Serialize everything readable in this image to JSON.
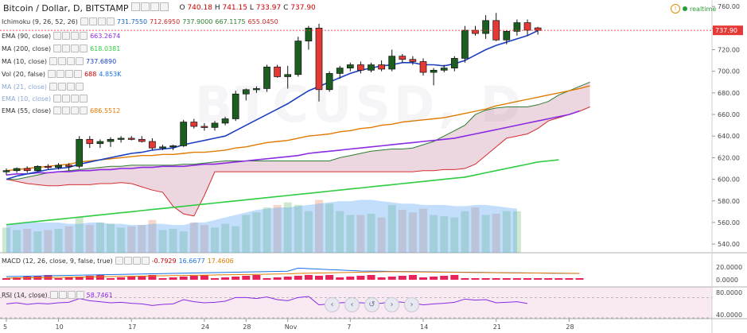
{
  "title": {
    "text": "Bitcoin / Dollar, D, BITSTAMP"
  },
  "ohlc": {
    "o_label": "O",
    "o": "740.18",
    "h_label": "H",
    "h": "741.15",
    "l_label": "L",
    "l": "733.97",
    "c_label": "C",
    "c": "737.90"
  },
  "realtime": {
    "label": "realtime",
    "icon": "alert-circle-icon"
  },
  "watermark": "BTCUSD, D",
  "indicators": [
    {
      "label": "Ichimoku (9, 26, 52, 26)",
      "values": [
        "731.7550",
        "712.6950",
        "737.9000",
        "667.1175",
        "655.0450"
      ],
      "colors": [
        "#1565c0",
        "#c62828",
        "#2e7d32",
        "#2e7d32",
        "#c62828"
      ]
    },
    {
      "label": "EMA (90, close)",
      "values": [
        "663.2674"
      ],
      "colors": [
        "#8a2be2"
      ]
    },
    {
      "label": "MA (200, close)",
      "values": [
        "618.0381"
      ],
      "colors": [
        "#2ecc40"
      ]
    },
    {
      "label": "MA (10, close)",
      "values": [
        "737.6890"
      ],
      "colors": [
        "#1a3fbf"
      ]
    },
    {
      "label": "Vol (20, false)",
      "values": [
        "688",
        "4.853K"
      ],
      "colors": [
        "#c00",
        "#1a73e8"
      ]
    },
    {
      "label": "MA (21, close)",
      "values": [],
      "colors": []
    },
    {
      "label": "EMA (10, close)",
      "values": [],
      "colors": []
    },
    {
      "label": "EMA (55, close)",
      "values": [
        "686.5512"
      ],
      "colors": [
        "#e07b00"
      ]
    }
  ],
  "macd": {
    "label": "MACD (12, 26, close, 9, false, true)",
    "values": [
      "-0.7929",
      "16.6677",
      "17.4606"
    ],
    "colors": [
      "#c00",
      "#1a73e8",
      "#e07b00"
    ]
  },
  "rsi": {
    "label": "RSI (14, close)",
    "values": [
      "58.7461"
    ],
    "colors": [
      "#8a2be2"
    ]
  },
  "price_axis": {
    "ticks": [
      "760.00",
      "740.00",
      "720.00",
      "700.00",
      "680.00",
      "660.00",
      "640.00",
      "620.00",
      "600.00",
      "580.00",
      "560.00",
      "540.00"
    ],
    "last": "737.90",
    "last_color": "#e53935"
  },
  "macd_axis": {
    "ticks": [
      "20.0000",
      "0.0000"
    ]
  },
  "rsi_axis": {
    "ticks": [
      "80.0000",
      "40.0000"
    ]
  },
  "navigation": [
    "‹",
    "‹",
    "↺",
    "›",
    "›"
  ],
  "chart_data": {
    "type": "candlestick",
    "title": "Bitcoin / Dollar, D, BITSTAMP",
    "x_labels": [
      {
        "i": 0,
        "t": "5"
      },
      {
        "i": 5,
        "t": "10"
      },
      {
        "i": 12,
        "t": "17"
      },
      {
        "i": 19,
        "t": "24"
      },
      {
        "i": 23,
        "t": "28"
      },
      {
        "i": 27,
        "t": "Nov"
      },
      {
        "i": 33,
        "t": "7"
      },
      {
        "i": 40,
        "t": "14"
      },
      {
        "i": 47,
        "t": "21"
      },
      {
        "i": 54,
        "t": "28"
      }
    ],
    "ylim": [
      532,
      766
    ],
    "candles": [
      {
        "o": 607,
        "h": 610,
        "l": 604,
        "c": 608
      },
      {
        "o": 608,
        "h": 611,
        "l": 606,
        "c": 610
      },
      {
        "o": 610,
        "h": 612,
        "l": 606,
        "c": 608
      },
      {
        "o": 608,
        "h": 613,
        "l": 607,
        "c": 612
      },
      {
        "o": 612,
        "h": 614,
        "l": 609,
        "c": 611
      },
      {
        "o": 611,
        "h": 615,
        "l": 609,
        "c": 613
      },
      {
        "o": 613,
        "h": 615,
        "l": 608,
        "c": 612
      },
      {
        "o": 612,
        "h": 640,
        "l": 610,
        "c": 637
      },
      {
        "o": 637,
        "h": 640,
        "l": 629,
        "c": 633
      },
      {
        "o": 633,
        "h": 637,
        "l": 629,
        "c": 635
      },
      {
        "o": 635,
        "h": 639,
        "l": 630,
        "c": 637
      },
      {
        "o": 637,
        "h": 640,
        "l": 634,
        "c": 638
      },
      {
        "o": 638,
        "h": 640,
        "l": 636,
        "c": 637
      },
      {
        "o": 637,
        "h": 640,
        "l": 634,
        "c": 635
      },
      {
        "o": 635,
        "h": 638,
        "l": 627,
        "c": 629
      },
      {
        "o": 629,
        "h": 632,
        "l": 627,
        "c": 630
      },
      {
        "o": 630,
        "h": 632,
        "l": 627,
        "c": 631
      },
      {
        "o": 631,
        "h": 655,
        "l": 630,
        "c": 653
      },
      {
        "o": 653,
        "h": 656,
        "l": 647,
        "c": 649
      },
      {
        "o": 649,
        "h": 652,
        "l": 645,
        "c": 648
      },
      {
        "o": 648,
        "h": 654,
        "l": 645,
        "c": 652
      },
      {
        "o": 652,
        "h": 658,
        "l": 650,
        "c": 656
      },
      {
        "o": 656,
        "h": 682,
        "l": 654,
        "c": 679
      },
      {
        "o": 679,
        "h": 684,
        "l": 673,
        "c": 683
      },
      {
        "o": 683,
        "h": 686,
        "l": 680,
        "c": 684
      },
      {
        "o": 684,
        "h": 706,
        "l": 681,
        "c": 704
      },
      {
        "o": 704,
        "h": 706,
        "l": 694,
        "c": 695
      },
      {
        "o": 695,
        "h": 705,
        "l": 684,
        "c": 697
      },
      {
        "o": 697,
        "h": 732,
        "l": 695,
        "c": 728
      },
      {
        "o": 728,
        "h": 742,
        "l": 720,
        "c": 740
      },
      {
        "o": 740,
        "h": 744,
        "l": 672,
        "c": 683
      },
      {
        "o": 683,
        "h": 700,
        "l": 681,
        "c": 698
      },
      {
        "o": 698,
        "h": 705,
        "l": 693,
        "c": 703
      },
      {
        "o": 703,
        "h": 708,
        "l": 700,
        "c": 706
      },
      {
        "o": 706,
        "h": 709,
        "l": 698,
        "c": 701
      },
      {
        "o": 701,
        "h": 708,
        "l": 699,
        "c": 706
      },
      {
        "o": 706,
        "h": 710,
        "l": 700,
        "c": 702
      },
      {
        "o": 702,
        "h": 720,
        "l": 700,
        "c": 714
      },
      {
        "o": 714,
        "h": 716,
        "l": 708,
        "c": 711
      },
      {
        "o": 711,
        "h": 714,
        "l": 706,
        "c": 709
      },
      {
        "o": 709,
        "h": 712,
        "l": 696,
        "c": 699
      },
      {
        "o": 699,
        "h": 703,
        "l": 687,
        "c": 701
      },
      {
        "o": 701,
        "h": 706,
        "l": 699,
        "c": 703
      },
      {
        "o": 703,
        "h": 714,
        "l": 700,
        "c": 712
      },
      {
        "o": 712,
        "h": 742,
        "l": 708,
        "c": 738
      },
      {
        "o": 738,
        "h": 742,
        "l": 733,
        "c": 735
      },
      {
        "o": 735,
        "h": 752,
        "l": 730,
        "c": 747
      },
      {
        "o": 747,
        "h": 754,
        "l": 728,
        "c": 729
      },
      {
        "o": 729,
        "h": 738,
        "l": 725,
        "c": 737
      },
      {
        "o": 737,
        "h": 748,
        "l": 733,
        "c": 745
      },
      {
        "o": 745,
        "h": 748,
        "l": 733,
        "c": 738
      },
      {
        "o": 740.18,
        "h": 741.15,
        "l": 733.97,
        "c": 737.9
      }
    ],
    "ma10": [
      600,
      603,
      605,
      607,
      609,
      610,
      611,
      614,
      616,
      618,
      620,
      622,
      624,
      625,
      627,
      628,
      629,
      632,
      634,
      636,
      638,
      640,
      645,
      650,
      655,
      660,
      665,
      670,
      676,
      682,
      686,
      690,
      694,
      698,
      701,
      703,
      705,
      706,
      708,
      708,
      706,
      706,
      705,
      707,
      710,
      715,
      720,
      724,
      727,
      730,
      733,
      737.69
    ],
    "ema55": [
      608,
      609,
      610,
      611,
      612,
      613,
      614,
      616,
      617,
      618,
      619,
      620,
      621,
      622,
      622,
      623,
      623,
      624,
      625,
      625,
      626,
      627,
      629,
      630,
      632,
      634,
      635,
      636,
      638,
      640,
      641,
      642,
      644,
      645,
      647,
      648,
      650,
      651,
      653,
      654,
      655,
      656,
      657,
      659,
      661,
      663,
      665,
      668,
      670,
      672,
      674,
      676,
      678,
      680,
      682,
      684,
      686.55
    ],
    "ema90": [
      604,
      605,
      605,
      606,
      606,
      607,
      607,
      608,
      608,
      609,
      609,
      610,
      610,
      611,
      611,
      612,
      612,
      612,
      613,
      614,
      614,
      615,
      616,
      617,
      618,
      619,
      620,
      621,
      622,
      624,
      625,
      626,
      627,
      628,
      629,
      630,
      631,
      632,
      633,
      634,
      635,
      636,
      637,
      638,
      640,
      642,
      644,
      646,
      648,
      650,
      652,
      654,
      656,
      658,
      660,
      663.27
    ],
    "ma200": [
      558,
      559,
      560,
      561,
      562,
      563,
      564,
      565,
      566,
      567,
      568,
      569,
      570,
      571,
      572,
      573,
      574,
      575,
      576,
      577,
      578,
      579,
      580,
      581,
      582,
      583,
      584,
      585,
      586,
      587,
      588,
      589,
      590,
      591,
      592,
      593,
      594,
      595,
      596,
      597,
      598,
      599,
      600,
      601,
      602,
      604,
      606,
      608,
      610,
      612,
      614,
      616,
      617,
      618.04
    ],
    "span_a": [
      600,
      600,
      602,
      604,
      606,
      607,
      608,
      609,
      610,
      611,
      612,
      612,
      613,
      613,
      613,
      613,
      613,
      614,
      614,
      615,
      616,
      617,
      617,
      617,
      617,
      617,
      617,
      617,
      617,
      617,
      617,
      617,
      620,
      622,
      624,
      626,
      627,
      628,
      628,
      629,
      632,
      635,
      640,
      645,
      650,
      660,
      664,
      666,
      667,
      667,
      667,
      669,
      672,
      678,
      682,
      686,
      690
    ],
    "span_b": [
      600,
      598,
      596,
      595,
      594,
      594,
      595,
      595,
      595,
      596,
      596,
      597,
      596,
      593,
      590,
      588,
      575,
      568,
      566,
      585,
      607,
      607,
      607,
      607,
      607,
      607,
      607,
      607,
      607,
      607,
      607,
      607,
      607,
      607,
      607,
      607,
      607,
      607,
      607,
      607,
      608,
      608,
      609,
      609,
      610,
      614,
      622,
      630,
      638,
      640,
      642,
      647,
      654,
      657,
      660,
      663,
      667
    ],
    "volume": [
      22,
      23,
      24,
      24,
      24,
      24,
      23,
      23,
      24,
      24,
      23,
      23,
      22,
      22,
      23,
      23,
      22,
      22,
      24,
      24,
      26,
      28,
      30,
      32,
      34,
      35,
      36,
      36,
      37,
      38,
      39,
      40,
      41,
      41,
      42,
      42,
      41,
      40,
      39,
      39,
      38,
      38,
      38,
      37,
      37,
      38,
      38,
      37,
      36,
      35
    ],
    "volume_bars": [
      20,
      18,
      19,
      17,
      18,
      19,
      21,
      28,
      22,
      24,
      23,
      20,
      21,
      22,
      26,
      18,
      19,
      17,
      24,
      22,
      20,
      23,
      21,
      30,
      32,
      36,
      38,
      40,
      38,
      33,
      42,
      39,
      33,
      30,
      30,
      31,
      28,
      38,
      34,
      32,
      35,
      30,
      29,
      28,
      33,
      36,
      30,
      31,
      33,
      33
    ]
  }
}
